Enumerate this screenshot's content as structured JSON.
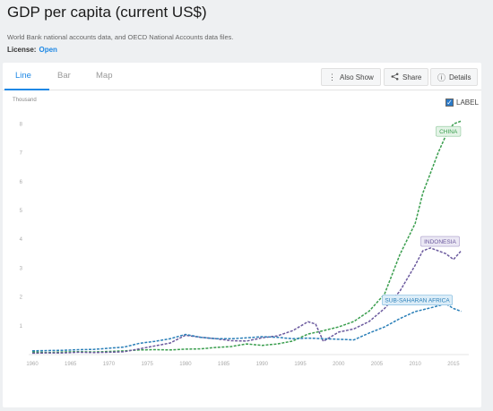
{
  "header": {
    "title": "GDP per capita (current US$)",
    "source": "World Bank national accounts data, and OECD National Accounts data files.",
    "license_label": "License:",
    "license_value": "Open"
  },
  "tabs": [
    {
      "label": "Line",
      "active": true
    },
    {
      "label": "Bar",
      "active": false
    },
    {
      "label": "Map",
      "active": false
    }
  ],
  "toolbar": {
    "also_show": "Also Show",
    "share": "Share",
    "details": "Details"
  },
  "label_toggle": {
    "label": "LABEL",
    "checked": true
  },
  "colors": {
    "accent": "#1e88e5",
    "china": "#3a9e4e",
    "indonesia": "#6b5a9e",
    "ssa": "#2a7fb8"
  },
  "chart_data": {
    "type": "line",
    "unit_label": "Thousand",
    "ylim": [
      0,
      8.2
    ],
    "yticks": [
      1,
      2,
      3,
      4,
      5,
      6,
      7,
      8
    ],
    "xlim": [
      1960,
      2017
    ],
    "xticks": [
      1960,
      1965,
      1970,
      1975,
      1980,
      1985,
      1990,
      1995,
      2000,
      2005,
      2010,
      2015
    ],
    "grid": false,
    "series": [
      {
        "name": "CHINA",
        "color": "#3a9e4e",
        "x": [
          1960,
          1962,
          1964,
          1966,
          1968,
          1970,
          1972,
          1974,
          1976,
          1978,
          1980,
          1982,
          1984,
          1986,
          1988,
          1990,
          1992,
          1994,
          1996,
          1998,
          2000,
          2002,
          2004,
          2006,
          2008,
          2010,
          2011,
          2012,
          2013,
          2014,
          2015,
          2016
        ],
        "y": [
          0.09,
          0.07,
          0.09,
          0.1,
          0.09,
          0.11,
          0.13,
          0.16,
          0.17,
          0.16,
          0.19,
          0.2,
          0.25,
          0.28,
          0.37,
          0.32,
          0.37,
          0.47,
          0.71,
          0.83,
          0.96,
          1.15,
          1.51,
          2.1,
          3.47,
          4.55,
          5.6,
          6.3,
          7.0,
          7.6,
          8.0,
          8.1
        ]
      },
      {
        "name": "INDONESIA",
        "color": "#6b5a9e",
        "x": [
          1960,
          1962,
          1964,
          1966,
          1968,
          1970,
          1972,
          1974,
          1976,
          1978,
          1980,
          1982,
          1984,
          1986,
          1988,
          1990,
          1992,
          1994,
          1996,
          1997,
          1998,
          2000,
          2002,
          2004,
          2006,
          2008,
          2010,
          2011,
          2012,
          2013,
          2014,
          2015,
          2016
        ],
        "y": [
          0.05,
          0.06,
          0.06,
          0.08,
          0.07,
          0.08,
          0.1,
          0.2,
          0.3,
          0.4,
          0.67,
          0.6,
          0.55,
          0.48,
          0.47,
          0.58,
          0.65,
          0.83,
          1.14,
          1.06,
          0.46,
          0.78,
          0.89,
          1.15,
          1.6,
          2.2,
          3.1,
          3.6,
          3.7,
          3.6,
          3.5,
          3.3,
          3.6
        ]
      },
      {
        "name": "SUB-SAHARAN AFRICA",
        "color": "#2a7fb8",
        "x": [
          1960,
          1962,
          1964,
          1966,
          1968,
          1970,
          1972,
          1974,
          1976,
          1978,
          1980,
          1982,
          1984,
          1986,
          1988,
          1990,
          1992,
          1994,
          1996,
          1998,
          2000,
          2002,
          2004,
          2006,
          2008,
          2010,
          2012,
          2014,
          2015,
          2016
        ],
        "y": [
          0.13,
          0.14,
          0.15,
          0.17,
          0.18,
          0.22,
          0.26,
          0.39,
          0.46,
          0.55,
          0.7,
          0.6,
          0.55,
          0.55,
          0.58,
          0.62,
          0.6,
          0.55,
          0.57,
          0.55,
          0.53,
          0.51,
          0.75,
          0.96,
          1.25,
          1.49,
          1.62,
          1.76,
          1.6,
          1.5
        ]
      }
    ]
  }
}
